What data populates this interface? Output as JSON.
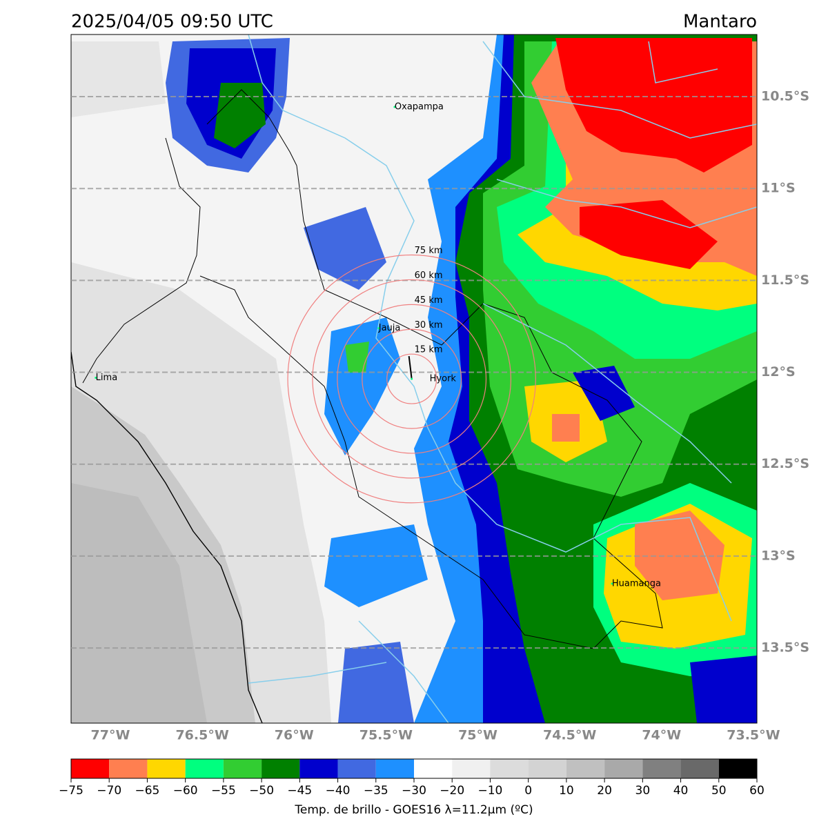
{
  "header": {
    "title": "2025/04/05 09:50 UTC",
    "region": "Mantaro"
  },
  "map": {
    "xlim": [
      -77.214,
      -73.481
    ],
    "ylim": [
      -13.909,
      -10.162
    ],
    "xticks": [
      {
        "value": -77,
        "label": "77°W"
      },
      {
        "value": -76.5,
        "label": "76.5°W"
      },
      {
        "value": -76,
        "label": "76°W"
      },
      {
        "value": -75.5,
        "label": "75.5°W"
      },
      {
        "value": -75,
        "label": "75°W"
      },
      {
        "value": -74.5,
        "label": "74.5°W"
      },
      {
        "value": -74,
        "label": "74°W"
      },
      {
        "value": -73.5,
        "label": "73.5°W"
      }
    ],
    "yticks": [
      {
        "value": -10.5,
        "label": "10.5°S"
      },
      {
        "value": -11,
        "label": "11°S"
      },
      {
        "value": -11.5,
        "label": "11.5°S"
      },
      {
        "value": -12,
        "label": "12°S"
      },
      {
        "value": -12.5,
        "label": "12.5°S"
      },
      {
        "value": -13,
        "label": "13°S"
      },
      {
        "value": -13.5,
        "label": "13.5°S"
      }
    ],
    "grid": true,
    "cities": [
      {
        "name": "Oxapampa",
        "lon": -75.453,
        "lat": -10.556
      },
      {
        "name": "Lima",
        "lon": -77.08,
        "lat": -12.03
      },
      {
        "name": "Jauja",
        "lon": -75.54,
        "lat": -11.76
      },
      {
        "name": "Hyork",
        "lon": -75.36,
        "lat": -12.036
      },
      {
        "name": "Huamanga",
        "lon": -74.27,
        "lat": -13.15
      }
    ],
    "station": {
      "lon": -75.36,
      "lat": -12.036
    },
    "rings": [
      {
        "radius_km": 15,
        "label": "15 km"
      },
      {
        "radius_km": 30,
        "label": "30 km"
      },
      {
        "radius_km": 45,
        "label": "45 km"
      },
      {
        "radius_km": 60,
        "label": "60 km"
      },
      {
        "radius_km": 75,
        "label": "75 km"
      }
    ]
  },
  "colorbar": {
    "label": "Temp. de brillo - GOES16 λ=11.2μm (ºC)",
    "bounds": [
      {
        "value": -75,
        "label": "−75"
      },
      {
        "value": -70,
        "label": "−70"
      },
      {
        "value": -65,
        "label": "−65"
      },
      {
        "value": -60,
        "label": "−60"
      },
      {
        "value": -55,
        "label": "−55"
      },
      {
        "value": -50,
        "label": "−50"
      },
      {
        "value": -45,
        "label": "−45"
      },
      {
        "value": -40,
        "label": "−40"
      },
      {
        "value": -35,
        "label": "−35"
      },
      {
        "value": -30,
        "label": "−30"
      },
      {
        "value": -20,
        "label": "−20"
      },
      {
        "value": -10,
        "label": "−10"
      },
      0,
      10,
      20,
      30,
      40,
      50,
      60
    ],
    "colors": [
      "#ff0000",
      "#ff7f50",
      "#ffd700",
      "#00ff7f",
      "#32cd32",
      "#008000",
      "#0000cd",
      "#4169e1",
      "#1e90ff",
      "#ffffff",
      "#f0f0f0",
      "#dcdcdc",
      "#d3d3d3",
      "#c0c0c0",
      "#a9a9a9",
      "#808080",
      "#696969",
      "#000000"
    ]
  }
}
